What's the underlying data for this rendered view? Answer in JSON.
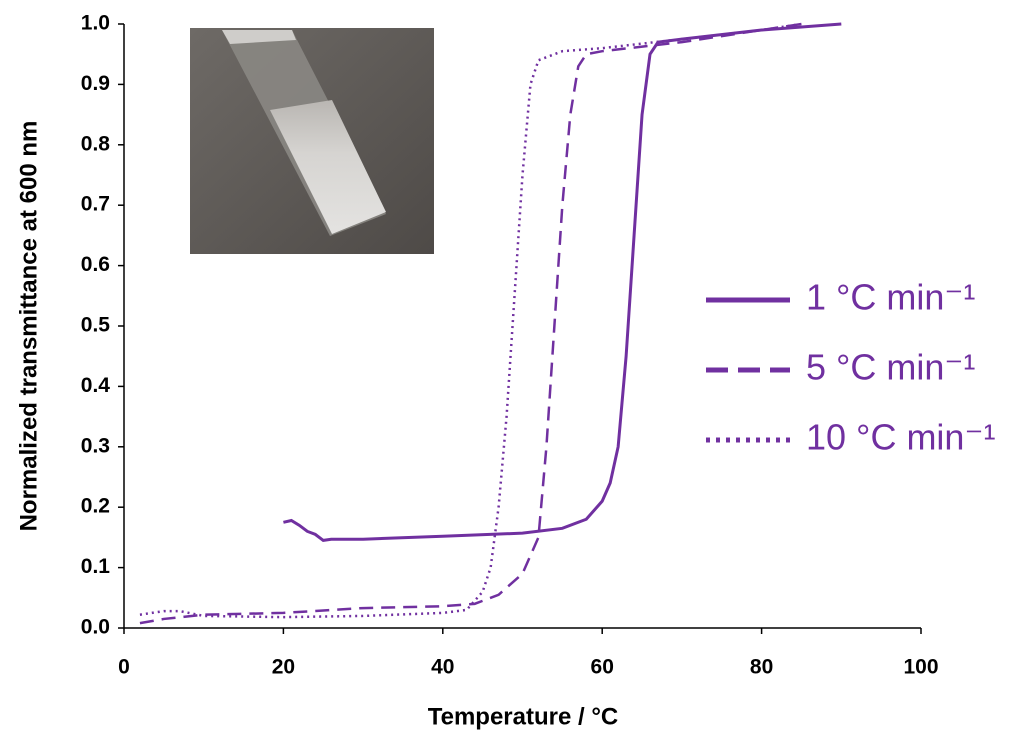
{
  "chart_data": {
    "type": "line",
    "xlabel": "Temperature / °C",
    "ylabel": "Normalized transmittance at 600 nm",
    "xlim": [
      0,
      100
    ],
    "xticks": [
      0,
      20,
      40,
      60,
      80,
      100
    ],
    "ylim": [
      0,
      1
    ],
    "yticks": [
      {
        "value": 0,
        "label": "0.0"
      },
      {
        "value": 0.1,
        "label": "0.1"
      },
      {
        "value": 0.2,
        "label": "0.2"
      },
      {
        "value": 0.3,
        "label": "0.3"
      },
      {
        "value": 0.4,
        "label": "0.4"
      },
      {
        "value": 0.5,
        "label": "0.5"
      },
      {
        "value": 0.6,
        "label": "0.6"
      },
      {
        "value": 0.7,
        "label": "0.7"
      },
      {
        "value": 0.8,
        "label": "0.8"
      },
      {
        "value": 0.9,
        "label": "0.9"
      },
      {
        "value": 1,
        "label": "1.0"
      }
    ],
    "grid": false,
    "legend": "right",
    "series": [
      {
        "name": "1 °C min⁻¹",
        "color": "#7030a0",
        "dash": "solid",
        "x": [
          20,
          21,
          22,
          23,
          24,
          25,
          26,
          30,
          40,
          50,
          55,
          58,
          60,
          61,
          62,
          63,
          64,
          65,
          66,
          67,
          70,
          80,
          90
        ],
        "values": [
          0.175,
          0.178,
          0.17,
          0.16,
          0.155,
          0.145,
          0.147,
          0.147,
          0.152,
          0.157,
          0.165,
          0.18,
          0.21,
          0.24,
          0.3,
          0.45,
          0.65,
          0.85,
          0.95,
          0.97,
          0.975,
          0.99,
          1.0
        ]
      },
      {
        "name": "5 °C min⁻¹",
        "color": "#7030a0",
        "dash": "dashed",
        "x": [
          2,
          5,
          10,
          20,
          30,
          40,
          44,
          47,
          50,
          52,
          53,
          54,
          55,
          56,
          57,
          58,
          60,
          70,
          80,
          85
        ],
        "values": [
          0.008,
          0.015,
          0.022,
          0.025,
          0.033,
          0.036,
          0.04,
          0.055,
          0.09,
          0.15,
          0.3,
          0.5,
          0.7,
          0.85,
          0.93,
          0.95,
          0.955,
          0.97,
          0.99,
          1.0
        ]
      },
      {
        "name": "10 °C min⁻¹",
        "color": "#7030a0",
        "dash": "dotted",
        "x": [
          2,
          5,
          7,
          10,
          20,
          30,
          40,
          43,
          45,
          46,
          47,
          48,
          49,
          50,
          51,
          52,
          55,
          60,
          70,
          80,
          85
        ],
        "values": [
          0.022,
          0.028,
          0.028,
          0.02,
          0.018,
          0.02,
          0.025,
          0.03,
          0.06,
          0.1,
          0.2,
          0.35,
          0.55,
          0.75,
          0.9,
          0.94,
          0.955,
          0.96,
          0.975,
          0.99,
          1.0
        ]
      }
    ]
  }
}
